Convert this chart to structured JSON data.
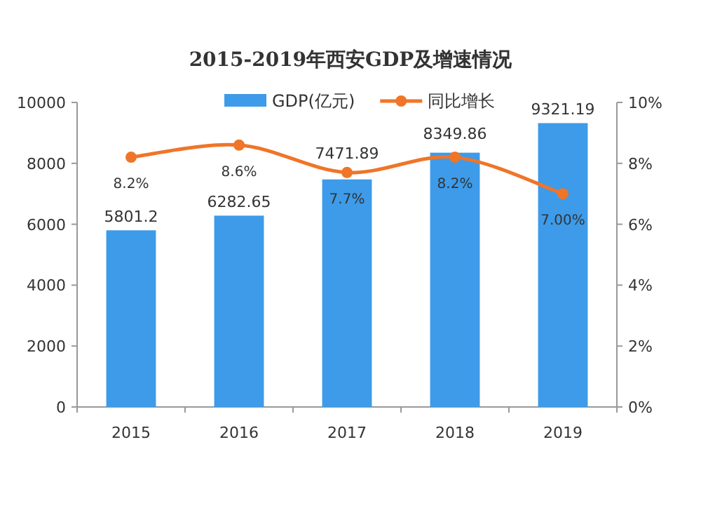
{
  "chart_data": {
    "type": "bar",
    "title": "2015-2019年西安GDP及增速情况",
    "categories": [
      "2015",
      "2016",
      "2017",
      "2018",
      "2019"
    ],
    "series": [
      {
        "name": "GDP(亿元)",
        "color": "#3d9be9",
        "values": [
          5801.2,
          6282.65,
          7471.89,
          8349.86,
          9321.19
        ],
        "value_labels": [
          "5801.2",
          "6282.65",
          "7471.89",
          "8349.86",
          "9321.19"
        ]
      },
      {
        "name": "同比增长",
        "type": "line",
        "axis": "y2",
        "color": "#f07528",
        "marker": "circle",
        "values": [
          8.2,
          8.6,
          7.7,
          8.2,
          7.0
        ],
        "value_labels": [
          "8.2%",
          "8.6%",
          "7.7%",
          "8.2%",
          "7.00%"
        ]
      }
    ],
    "ylim": [
      0,
      10000
    ],
    "yticks": [
      0,
      2000,
      4000,
      6000,
      8000,
      10000
    ],
    "y2lim": [
      0,
      10
    ],
    "y2ticks": [
      {
        "value": 0,
        "label": "0%"
      },
      {
        "value": 2,
        "label": "2%"
      },
      {
        "value": 4,
        "label": "4%"
      },
      {
        "value": 6,
        "label": "6%"
      },
      {
        "value": 8,
        "label": "8%"
      },
      {
        "value": 10,
        "label": "10%"
      }
    ],
    "legend": "top",
    "grid": false
  }
}
